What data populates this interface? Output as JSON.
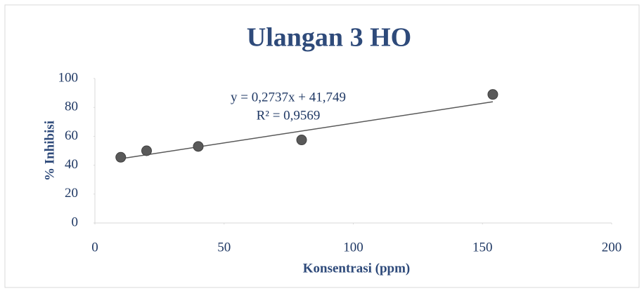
{
  "chart_data": {
    "type": "scatter",
    "title": "Ulangan 3 HO",
    "xlabel": "Konsentrasi (ppm)",
    "ylabel": "% Inhibisi",
    "x": [
      10,
      20,
      40,
      80,
      154
    ],
    "values": [
      45.5,
      50,
      53,
      57.5,
      89
    ],
    "color": "#595959",
    "xlim": [
      0,
      200
    ],
    "xticks": [
      0,
      50,
      100,
      150,
      200
    ],
    "ylim": [
      0,
      100
    ],
    "yticks": [
      0,
      20,
      40,
      60,
      80,
      100
    ],
    "trendline": {
      "slope": 0.2737,
      "intercept": 41.749,
      "color": "#595959",
      "label": "y = 0,2737x + 41,749",
      "r2_label": "R² = 0,9569"
    }
  }
}
